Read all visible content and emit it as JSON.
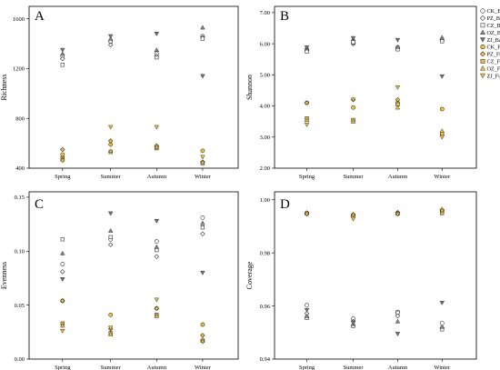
{
  "legend": {
    "items": [
      {
        "label": "CK_Bacteria",
        "shape": "circle",
        "color": "#ffffff"
      },
      {
        "label": "PZ_Bacteria",
        "shape": "diamond",
        "color": "#ffffff"
      },
      {
        "label": "CZ_Bacteria",
        "shape": "square",
        "color": "#ffffff"
      },
      {
        "label": "OZ_Bacteria",
        "shape": "triangle-up",
        "color": "#ffffff"
      },
      {
        "label": "ZJ_Bacteria",
        "shape": "triangle-down",
        "color": "#ffffff"
      },
      {
        "label": "CK_Fungi",
        "shape": "circle",
        "color": "#f2c23a"
      },
      {
        "label": "PZ_Fungi",
        "shape": "diamond",
        "color": "#f2c23a"
      },
      {
        "label": "CZ_Fungi",
        "shape": "square",
        "color": "#f2c23a"
      },
      {
        "label": "OZ_Fungi",
        "shape": "triangle-up",
        "color": "#f2c23a"
      },
      {
        "label": "ZJ_Fungi",
        "shape": "triangle-down",
        "color": "#f2c23a"
      }
    ]
  },
  "chart_data": [
    {
      "type": "scatter",
      "panel": "A",
      "ylabel": "Richness",
      "categories": [
        "Spring",
        "Summer",
        "Autumn",
        "Winter"
      ],
      "ylim": [
        400,
        1700
      ],
      "yticks": [
        400,
        800,
        1200,
        1600
      ],
      "ytick_labels": [
        "400",
        "800",
        "1200",
        "1600"
      ],
      "series": [
        {
          "name": "CK_Bacteria",
          "values": [
            1300,
            1420,
            1320,
            1460
          ]
        },
        {
          "name": "PZ_Bacteria",
          "values": [
            1280,
            1390,
            1300,
            1450
          ]
        },
        {
          "name": "CZ_Bacteria",
          "values": [
            1230,
            1420,
            1290,
            1440
          ]
        },
        {
          "name": "OZ_Bacteria",
          "values": [
            1320,
            1440,
            1350,
            1530
          ]
        },
        {
          "name": "ZJ_Bacteria",
          "values": [
            1350,
            1460,
            1480,
            1140
          ]
        },
        {
          "name": "CK_Fungi",
          "values": [
            510,
            590,
            570,
            540
          ]
        },
        {
          "name": "PZ_Fungi",
          "values": [
            550,
            620,
            580,
            450
          ]
        },
        {
          "name": "CZ_Fungi",
          "values": [
            480,
            530,
            560,
            440
          ]
        },
        {
          "name": "OZ_Fungi",
          "values": [
            470,
            540,
            570,
            450
          ]
        },
        {
          "name": "ZJ_Fungi",
          "values": [
            460,
            730,
            730,
            490
          ]
        }
      ]
    },
    {
      "type": "scatter",
      "panel": "B",
      "ylabel": "Shannon",
      "categories": [
        "Spring",
        "Summer",
        "Autumn",
        "Winter"
      ],
      "ylim": [
        2.0,
        7.2
      ],
      "yticks": [
        2.0,
        3.0,
        4.0,
        5.0,
        6.0,
        7.0
      ],
      "ytick_labels": [
        "2.00",
        "3.00",
        "4.00",
        "5.00",
        "6.00",
        "7.00"
      ],
      "series": [
        {
          "name": "CK_Bacteria",
          "values": [
            5.82,
            6.0,
            5.88,
            6.12
          ]
        },
        {
          "name": "PZ_Bacteria",
          "values": [
            5.78,
            6.02,
            5.85,
            6.1
          ]
        },
        {
          "name": "CZ_Bacteria",
          "values": [
            5.75,
            6.05,
            5.82,
            6.08
          ]
        },
        {
          "name": "OZ_Bacteria",
          "values": [
            5.85,
            6.15,
            5.9,
            6.2
          ]
        },
        {
          "name": "ZJ_Bacteria",
          "values": [
            5.88,
            6.18,
            6.12,
            4.95
          ]
        },
        {
          "name": "CK_Fungi",
          "values": [
            4.1,
            3.95,
            4.1,
            3.9
          ]
        },
        {
          "name": "PZ_Fungi",
          "values": [
            4.1,
            4.2,
            4.2,
            3.05
          ]
        },
        {
          "name": "CZ_Fungi",
          "values": [
            3.6,
            3.55,
            4.05,
            3.1
          ]
        },
        {
          "name": "OZ_Fungi",
          "values": [
            3.55,
            3.5,
            3.95,
            3.2
          ]
        },
        {
          "name": "ZJ_Fungi",
          "values": [
            3.4,
            4.2,
            4.6,
            3.0
          ]
        }
      ]
    },
    {
      "type": "scatter",
      "panel": "C",
      "ylabel": "Evenness",
      "categories": [
        "Spring",
        "Summer",
        "Autumn",
        "Winter"
      ],
      "ylim": [
        0.0,
        0.155
      ],
      "yticks": [
        0.0,
        0.05,
        0.1,
        0.15
      ],
      "ytick_labels": [
        "0.00",
        "0.05",
        "0.10",
        "0.15"
      ],
      "series": [
        {
          "name": "CK_Bacteria",
          "values": [
            0.088,
            0.111,
            0.109,
            0.131
          ]
        },
        {
          "name": "PZ_Bacteria",
          "values": [
            0.081,
            0.106,
            0.095,
            0.116
          ]
        },
        {
          "name": "CZ_Bacteria",
          "values": [
            0.111,
            0.113,
            0.101,
            0.122
          ]
        },
        {
          "name": "OZ_Bacteria",
          "values": [
            0.098,
            0.119,
            0.104,
            0.126
          ]
        },
        {
          "name": "ZJ_Bacteria",
          "values": [
            0.074,
            0.135,
            0.128,
            0.08
          ]
        },
        {
          "name": "CK_Fungi",
          "values": [
            0.054,
            0.041,
            0.047,
            0.032
          ]
        },
        {
          "name": "PZ_Fungi",
          "values": [
            0.054,
            0.028,
            0.047,
            0.022
          ]
        },
        {
          "name": "CZ_Fungi",
          "values": [
            0.033,
            0.024,
            0.041,
            0.017
          ]
        },
        {
          "name": "OZ_Fungi",
          "values": [
            0.031,
            0.023,
            0.04,
            0.018
          ]
        },
        {
          "name": "ZJ_Fungi",
          "values": [
            0.026,
            0.029,
            0.055,
            0.016
          ]
        }
      ]
    },
    {
      "type": "scatter",
      "panel": "D",
      "ylabel": "Coverage",
      "categories": [
        "Spring",
        "Summer",
        "Autumn",
        "Winter"
      ],
      "ylim": [
        0.94,
        1.003
      ],
      "yticks": [
        0.94,
        0.96,
        0.98,
        1.0
      ],
      "ytick_labels": [
        "0.94",
        "0.96",
        "0.98",
        "1.00"
      ],
      "series": [
        {
          "name": "CK_Bacteria",
          "values": [
            0.9603,
            0.9552,
            0.9577,
            0.9535
          ]
        },
        {
          "name": "PZ_Bacteria",
          "values": [
            0.9572,
            0.9542,
            0.9562,
            0.9518
          ]
        },
        {
          "name": "CZ_Bacteria",
          "values": [
            0.9555,
            0.9525,
            0.9575,
            0.9512
          ]
        },
        {
          "name": "OZ_Bacteria",
          "values": [
            0.9562,
            0.9532,
            0.9542,
            0.9522
          ]
        },
        {
          "name": "ZJ_Bacteria",
          "values": [
            0.9585,
            0.9538,
            0.9495,
            0.9612
          ]
        },
        {
          "name": "CK_Fungi",
          "values": [
            0.995,
            0.9942,
            0.995,
            0.9955
          ]
        },
        {
          "name": "PZ_Fungi",
          "values": [
            0.995,
            0.9945,
            0.9952,
            0.9962
          ]
        },
        {
          "name": "CZ_Fungi",
          "values": [
            0.9948,
            0.994,
            0.9948,
            0.995
          ]
        },
        {
          "name": "OZ_Fungi",
          "values": [
            0.9952,
            0.9945,
            0.995,
            0.9965
          ]
        },
        {
          "name": "ZJ_Fungi",
          "values": [
            0.9945,
            0.9928,
            0.9945,
            0.9958
          ]
        }
      ]
    }
  ]
}
